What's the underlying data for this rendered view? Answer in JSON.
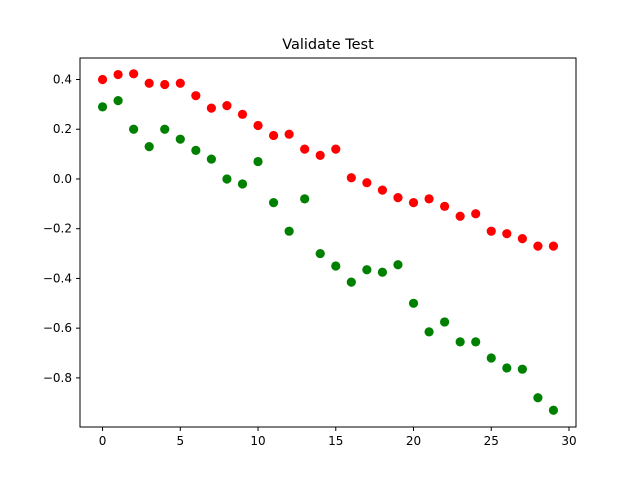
{
  "chart_data": {
    "type": "scatter",
    "title": "Validate Test",
    "xlabel": "",
    "ylabel": "",
    "xlim": [
      -1.45,
      30.45
    ],
    "ylim": [
      -0.9975,
      0.4865
    ],
    "x_ticks": [
      0,
      5,
      10,
      15,
      20,
      25,
      30
    ],
    "x_tick_labels": [
      "0",
      "5",
      "10",
      "15",
      "20",
      "25",
      "30"
    ],
    "y_ticks": [
      -0.8,
      -0.6,
      -0.4,
      -0.2,
      0.0,
      0.2,
      0.4
    ],
    "y_tick_labels": [
      "−0.8",
      "−0.6",
      "−0.4",
      "−0.2",
      "0.0",
      "0.2",
      "0.4"
    ],
    "grid": false,
    "legend": "none",
    "series": [
      {
        "color": "#ff0000",
        "x": [
          0,
          1,
          2,
          3,
          4,
          5,
          6,
          7,
          8,
          9,
          10,
          11,
          12,
          13,
          14,
          15,
          16,
          17,
          18,
          19,
          20,
          21,
          22,
          23,
          24,
          25,
          26,
          27,
          28,
          29
        ],
        "y": [
          0.4,
          0.42,
          0.423,
          0.385,
          0.38,
          0.385,
          0.335,
          0.285,
          0.295,
          0.26,
          0.215,
          0.175,
          0.18,
          0.12,
          0.095,
          0.12,
          0.005,
          -0.015,
          -0.045,
          -0.075,
          -0.095,
          -0.08,
          -0.11,
          -0.15,
          -0.14,
          -0.21,
          -0.22,
          -0.24,
          -0.27,
          -0.27
        ]
      },
      {
        "color": "#008000",
        "x": [
          0,
          1,
          2,
          3,
          4,
          5,
          6,
          7,
          8,
          9,
          10,
          11,
          12,
          13,
          14,
          15,
          16,
          17,
          18,
          19,
          20,
          21,
          22,
          23,
          24,
          25,
          26,
          27,
          28,
          29
        ],
        "y": [
          0.29,
          0.315,
          0.2,
          0.13,
          0.2,
          0.16,
          0.115,
          0.08,
          0.0,
          -0.02,
          0.07,
          -0.095,
          -0.21,
          -0.08,
          -0.3,
          -0.35,
          -0.415,
          -0.365,
          -0.375,
          -0.345,
          -0.5,
          -0.615,
          -0.575,
          -0.655,
          -0.655,
          -0.72,
          -0.76,
          -0.765,
          -0.88,
          -0.93
        ]
      }
    ]
  }
}
